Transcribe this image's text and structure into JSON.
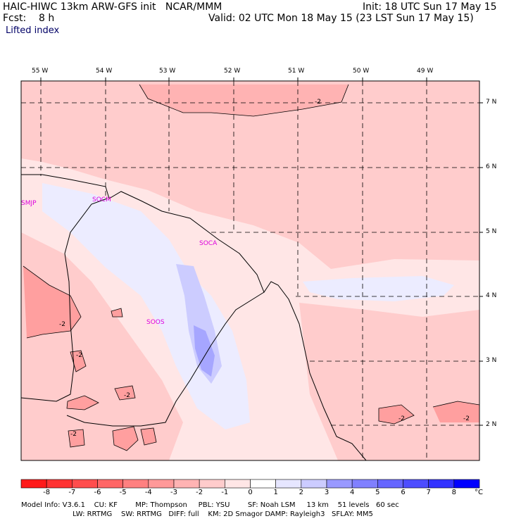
{
  "header": {
    "title_left": "HAIC-HIWC 13km ARW-GFS init   NCAR/MMM",
    "fcst": "Fcst:    8 h",
    "init": "Init: 18 UTC Sun 17 May 15",
    "valid": "Valid: 02 UTC Mon 18 May 15 (23 LST Sun 17 May 15)",
    "field": "Lifted index"
  },
  "map": {
    "lon_labels": [
      "55 W",
      "54 W",
      "53 W",
      "52 W",
      "51 W",
      "50 W",
      "49 W"
    ],
    "lat_labels": [
      "7 N",
      "6 N",
      "5 N",
      "4 N",
      "3 N",
      "2 N"
    ],
    "stations": [
      "SMJP",
      "SOCM",
      "SOCA",
      "SOOS"
    ],
    "contour_labels": [
      "-2",
      "-2",
      "-2",
      "-2",
      "-2",
      "-2",
      "-2"
    ]
  },
  "colorbar": {
    "values": [
      "-8",
      "-7",
      "-6",
      "-5",
      "-4",
      "-3",
      "-2",
      "-1",
      "0",
      "1",
      "2",
      "3",
      "4",
      "5",
      "6",
      "7",
      "8"
    ],
    "unit": "°C",
    "colors": [
      "#ff1a1a",
      "#ff3333",
      "#ff4d4d",
      "#ff6666",
      "#ff8080",
      "#ff9999",
      "#ffb3b3",
      "#ffcccc",
      "#ffe6e6",
      "#ffffff",
      "#e6e6ff",
      "#ccccff",
      "#9999ff",
      "#8080ff",
      "#6666ff",
      "#4d4dff",
      "#3333ff",
      "#0000ff"
    ]
  },
  "footer": {
    "line1": "Model Info: V3.6.1    CU: KF        MP: Thompson     PBL: YSU        SF: Noah LSM     13 km    51 levels   60 sec",
    "line2": "                       LW: RRTMG    SW: RRTMG   DIFF: full    KM: 2D Smagor DAMP: Rayleigh3   SFLAY: MM5"
  }
}
